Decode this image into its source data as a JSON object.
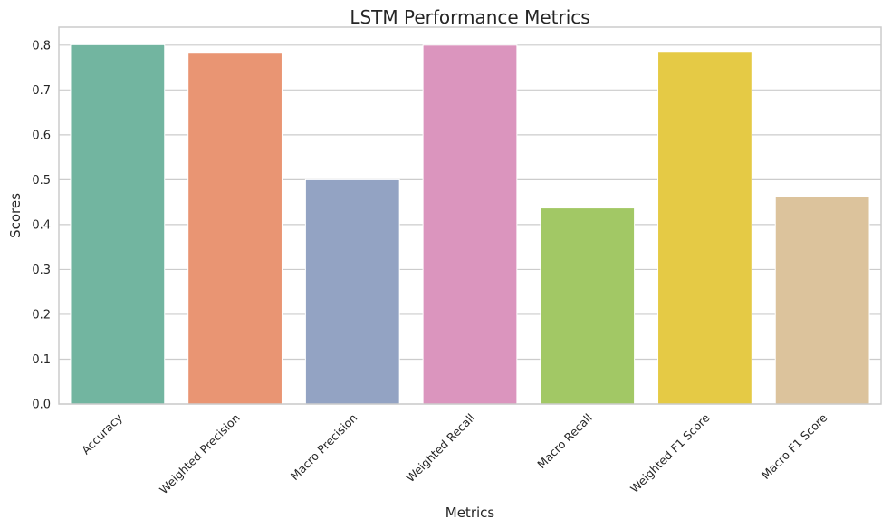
{
  "chart_data": {
    "type": "bar",
    "title": "LSTM Performance Metrics",
    "xlabel": "Metrics",
    "ylabel": "Scores",
    "categories": [
      "Accuracy",
      "Weighted Precision",
      "Macro Precision",
      "Weighted Recall",
      "Macro Recall",
      "Weighted F1 Score",
      "Macro F1 Score"
    ],
    "values": [
      0.801,
      0.782,
      0.5,
      0.8,
      0.437,
      0.786,
      0.462
    ],
    "colors": [
      "#72b5a0",
      "#e99573",
      "#93a3c3",
      "#db95be",
      "#a2c865",
      "#e5ca45",
      "#dcc39c"
    ],
    "ylim": [
      0,
      0.84
    ],
    "yticks": [
      0.0,
      0.1,
      0.2,
      0.3,
      0.4,
      0.5,
      0.6,
      0.7,
      0.8
    ],
    "ytick_labels": [
      "0.0",
      "0.1",
      "0.2",
      "0.3",
      "0.4",
      "0.5",
      "0.6",
      "0.7",
      "0.8"
    ],
    "grid": true,
    "grid_axis": "y"
  }
}
